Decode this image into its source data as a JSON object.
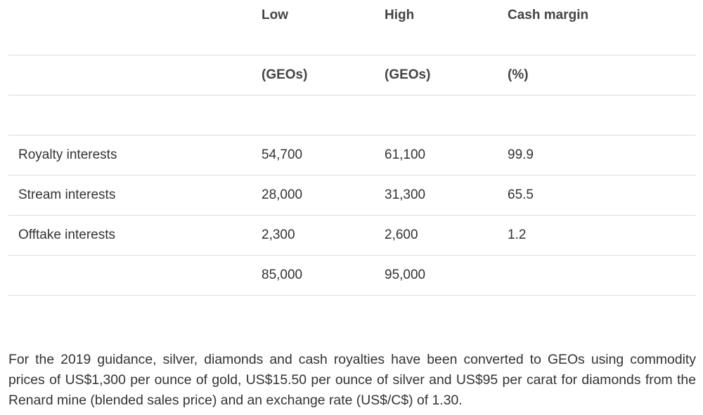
{
  "table": {
    "headers": [
      "",
      "Low",
      "High",
      "Cash margin"
    ],
    "units": [
      "",
      "(GEOs)",
      "(GEOs)",
      "(%)"
    ],
    "rows": [
      {
        "label": "Royalty interests",
        "low": "54,700",
        "high": "61,100",
        "margin": "99.9"
      },
      {
        "label": "Stream interests",
        "low": "28,000",
        "high": "31,300",
        "margin": "65.5"
      },
      {
        "label": "Offtake interests",
        "low": "2,300",
        "high": "2,600",
        "margin": "1.2"
      }
    ],
    "total": {
      "label": "",
      "low": "85,000",
      "high": "95,000",
      "margin": ""
    }
  },
  "footnote": "For the 2019 guidance, silver, diamonds and cash royalties have been converted to GEOs using commodity prices of US$1,300 per ounce of gold, US$15.50 per ounce of silver and US$95 per carat for diamonds from the Renard mine (blended sales price) and an exchange rate (US$/C$) of 1.30."
}
